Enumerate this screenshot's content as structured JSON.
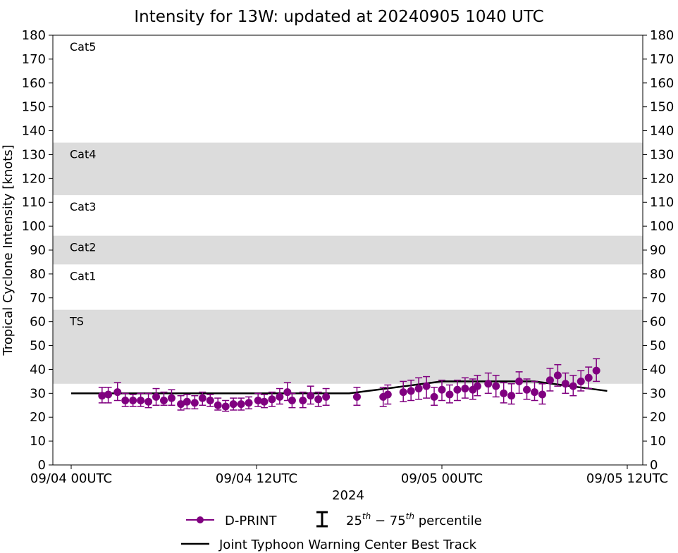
{
  "chart_data": {
    "type": "scatter",
    "title": "Intensity for 13W: updated at 20240905 1040 UTC",
    "xlabel": "2024",
    "ylabel": "Tropical Cyclone Intensity [knots]",
    "ylim": [
      0,
      180
    ],
    "xlim": [
      "2024-09-03T22:49",
      "2024-09-05T13:00"
    ],
    "yticks": [
      0,
      10,
      20,
      30,
      40,
      50,
      60,
      70,
      80,
      90,
      100,
      110,
      120,
      130,
      140,
      150,
      160,
      170,
      180
    ],
    "xticks": [
      {
        "t": "2024-09-04T00:00",
        "label": "09/04 00UTC"
      },
      {
        "t": "2024-09-04T12:00",
        "label": "09/04 12UTC"
      },
      {
        "t": "2024-09-05T00:00",
        "label": "09/05 00UTC"
      },
      {
        "t": "2024-09-05T12:00",
        "label": "09/05 12UTC"
      }
    ],
    "grid": false,
    "bands": [
      {
        "label": "TS",
        "from": 34,
        "to": 65,
        "shaded": true
      },
      {
        "label": "Cat1",
        "from": 65,
        "to": 84,
        "shaded": false
      },
      {
        "label": "Cat2",
        "from": 84,
        "to": 96,
        "shaded": true
      },
      {
        "label": "Cat3",
        "from": 96,
        "to": 113,
        "shaded": false
      },
      {
        "label": "Cat4",
        "from": 113,
        "to": 135,
        "shaded": true
      },
      {
        "label": "Cat5",
        "from": 135,
        "to": 180,
        "shaded": false
      }
    ],
    "colors": {
      "dprint": "#800080",
      "best_track": "#000000",
      "band": "#dcdcdc"
    },
    "series": [
      {
        "name": "D-PRINT",
        "type": "scatter-errorbar",
        "fields": [
          "time",
          "value",
          "p25",
          "p75"
        ],
        "points": [
          [
            "2024-09-04T02:00",
            29,
            26,
            32.5
          ],
          [
            "2024-09-04T02:24",
            29.5,
            26,
            32.5
          ],
          [
            "2024-09-04T03:00",
            30.5,
            27,
            34.5
          ],
          [
            "2024-09-04T03:30",
            27,
            24.5,
            30
          ],
          [
            "2024-09-04T04:00",
            27,
            24.5,
            29.5
          ],
          [
            "2024-09-04T04:30",
            27,
            24.5,
            30
          ],
          [
            "2024-09-04T05:00",
            26.5,
            24,
            30
          ],
          [
            "2024-09-04T05:30",
            28.5,
            25,
            32
          ],
          [
            "2024-09-04T06:00",
            27,
            25,
            30.5
          ],
          [
            "2024-09-04T06:30",
            28,
            25,
            31.5
          ],
          [
            "2024-09-04T07:06",
            25.5,
            23,
            29
          ],
          [
            "2024-09-04T07:30",
            26.5,
            23.5,
            29.5
          ],
          [
            "2024-09-04T08:00",
            26,
            23.5,
            29
          ],
          [
            "2024-09-04T08:30",
            28,
            25,
            30.5
          ],
          [
            "2024-09-04T09:00",
            27,
            24.5,
            29.5
          ],
          [
            "2024-09-04T09:30",
            25,
            23,
            28
          ],
          [
            "2024-09-04T10:00",
            24.5,
            22.5,
            27
          ],
          [
            "2024-09-04T10:30",
            25.5,
            23,
            28
          ],
          [
            "2024-09-04T11:00",
            25.5,
            23,
            28
          ],
          [
            "2024-09-04T11:30",
            26,
            23.5,
            28.5
          ],
          [
            "2024-09-04T12:06",
            27,
            24.5,
            30
          ],
          [
            "2024-09-04T12:30",
            26.5,
            24,
            29.5
          ],
          [
            "2024-09-04T13:00",
            27.5,
            24.5,
            30.5
          ],
          [
            "2024-09-04T13:30",
            28.5,
            25.5,
            32
          ],
          [
            "2024-09-04T14:00",
            30.5,
            27,
            34.5
          ],
          [
            "2024-09-04T14:18",
            27,
            24,
            30
          ],
          [
            "2024-09-04T15:00",
            27,
            24,
            30.5
          ],
          [
            "2024-09-04T15:30",
            29,
            25.5,
            33
          ],
          [
            "2024-09-04T16:00",
            27.5,
            24.5,
            30.5
          ],
          [
            "2024-09-04T16:30",
            28.5,
            25,
            32
          ],
          [
            "2024-09-04T18:30",
            28.5,
            25,
            32.5
          ],
          [
            "2024-09-04T20:12",
            28.5,
            24.5,
            32.5
          ],
          [
            "2024-09-04T20:30",
            29.5,
            25.5,
            33.5
          ],
          [
            "2024-09-04T21:30",
            30.5,
            26.5,
            35
          ],
          [
            "2024-09-04T22:00",
            31,
            27,
            35.5
          ],
          [
            "2024-09-04T22:30",
            32,
            27.5,
            36.5
          ],
          [
            "2024-09-04T23:00",
            33,
            28,
            37
          ],
          [
            "2024-09-04T23:30",
            28.5,
            25,
            32.5
          ],
          [
            "2024-09-05T00:00",
            31.5,
            27,
            35.5
          ],
          [
            "2024-09-05T00:30",
            29.5,
            26,
            33.5
          ],
          [
            "2024-09-05T01:00",
            31.5,
            27,
            35.5
          ],
          [
            "2024-09-05T01:30",
            32,
            28,
            36.5
          ],
          [
            "2024-09-05T02:00",
            31.5,
            27.5,
            36
          ],
          [
            "2024-09-05T02:18",
            33,
            29,
            37.5
          ],
          [
            "2024-09-05T03:00",
            34,
            30,
            38.5
          ],
          [
            "2024-09-05T03:30",
            33,
            28.5,
            37.5
          ],
          [
            "2024-09-05T04:00",
            30,
            26,
            34.5
          ],
          [
            "2024-09-05T04:30",
            29,
            25.5,
            34
          ],
          [
            "2024-09-05T05:00",
            35,
            30,
            39
          ],
          [
            "2024-09-05T05:30",
            31.5,
            27.5,
            36
          ],
          [
            "2024-09-05T06:00",
            30.5,
            27,
            35
          ],
          [
            "2024-09-05T06:30",
            29.5,
            25.5,
            34
          ],
          [
            "2024-09-05T07:00",
            35.5,
            31,
            40.5
          ],
          [
            "2024-09-05T07:30",
            37.5,
            33,
            42
          ],
          [
            "2024-09-05T08:00",
            34,
            30,
            38.5
          ],
          [
            "2024-09-05T08:30",
            33,
            29,
            37.5
          ],
          [
            "2024-09-05T09:00",
            35,
            31,
            39.5
          ],
          [
            "2024-09-05T09:30",
            36.5,
            32,
            41
          ],
          [
            "2024-09-05T10:00",
            39.5,
            35,
            44.5
          ]
        ]
      },
      {
        "name": "Joint Typhoon Warning Center Best Track",
        "type": "line",
        "points": [
          [
            "2024-09-04T00:00",
            30
          ],
          [
            "2024-09-04T18:00",
            30
          ],
          [
            "2024-09-05T00:00",
            35
          ],
          [
            "2024-09-05T06:00",
            35
          ],
          [
            "2024-09-05T10:42",
            31
          ]
        ]
      }
    ],
    "legend": {
      "placement": "bottom",
      "dprint": "D-PRINT",
      "percentile_prefix": "25",
      "percentile_mid": " − 75",
      "percentile_sup": "th",
      "percentile_suffix": " percentile",
      "best_track": "Joint Typhoon Warning Center Best Track"
    }
  }
}
